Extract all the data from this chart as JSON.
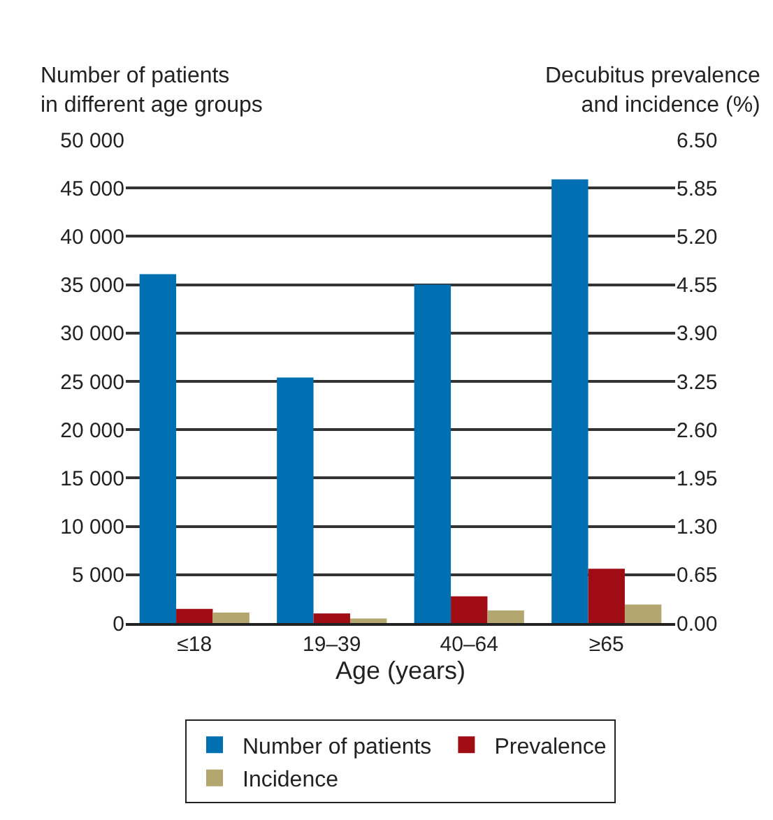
{
  "chart_data": {
    "type": "bar",
    "categories": [
      "≤18",
      "19–39",
      "40–64",
      "≥65"
    ],
    "xlabel": "Age (years)",
    "ylabel": "Number of patients\nin different age groups",
    "y2label": "Decubitus prevalence\nand incidence (%)",
    "series": [
      {
        "name": "Number of patients",
        "color": "#0070b3",
        "values": [
          36100,
          25400,
          35000,
          45900
        ]
      },
      {
        "name": "Prevalence",
        "color": "#a00c14",
        "values": [
          0.19,
          0.13,
          0.36,
          0.73
        ],
        "axis": "y2"
      },
      {
        "name": "Incidence",
        "color": "#b3a76f",
        "values": [
          0.14,
          0.06,
          0.17,
          0.25
        ],
        "axis": "y2"
      }
    ],
    "ylim": [
      0,
      50000
    ],
    "yticks": [
      {
        "value": 0,
        "label": "0"
      },
      {
        "value": 5000,
        "label": "5 000"
      },
      {
        "value": 10000,
        "label": "10 000"
      },
      {
        "value": 15000,
        "label": "15 000"
      },
      {
        "value": 20000,
        "label": "20 000"
      },
      {
        "value": 25000,
        "label": "25 000"
      },
      {
        "value": 30000,
        "label": "30 000"
      },
      {
        "value": 35000,
        "label": "35 000"
      },
      {
        "value": 40000,
        "label": "40 000"
      },
      {
        "value": 45000,
        "label": "45 000"
      },
      {
        "value": 50000,
        "label": "50 000"
      }
    ],
    "y2lim": [
      0,
      6.5
    ],
    "y2ticks": [
      {
        "value": 0,
        "label": "0.00"
      },
      {
        "value": 0.65,
        "label": "0.65"
      },
      {
        "value": 1.3,
        "label": "1.30"
      },
      {
        "value": 1.95,
        "label": "1.95"
      },
      {
        "value": 2.6,
        "label": "2.60"
      },
      {
        "value": 3.25,
        "label": "3.25"
      },
      {
        "value": 3.9,
        "label": "3.90"
      },
      {
        "value": 4.55,
        "label": "4.55"
      },
      {
        "value": 5.2,
        "label": "5.20"
      },
      {
        "value": 5.85,
        "label": "5.85"
      },
      {
        "value": 6.5,
        "label": "6.50"
      }
    ],
    "grid": "y",
    "legend": "bottom"
  }
}
